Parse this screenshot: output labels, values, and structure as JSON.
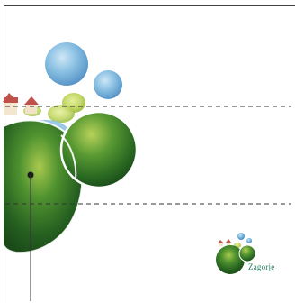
{
  "logo": {
    "text": "Zagorje",
    "text_color": "#1f7a55"
  },
  "palette": {
    "tree_dark": "#1f5a1e",
    "tree_mid": "#3f8a2c",
    "tree_light": "#9cc34a",
    "sky_blue": "#6aaed8",
    "roof_red": "#c0504a"
  }
}
